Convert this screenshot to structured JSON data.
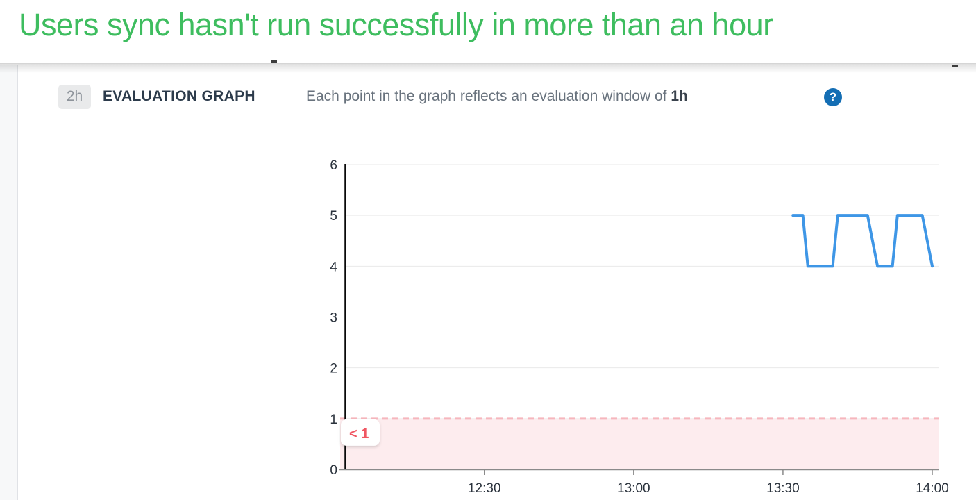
{
  "header": {
    "title": "Users sync hasn't run successfully in more than an hour",
    "title_color": "#3ebd5f"
  },
  "section": {
    "time_window_badge": "2h",
    "label": "EVALUATION GRAPH",
    "description_prefix": "Each point in the graph reflects an evaluation window of ",
    "description_window": "1h",
    "help_icon_glyph": "?",
    "help_icon_color": "#146eb4"
  },
  "chart_data": {
    "type": "line",
    "x_range": [
      "12:02",
      "14:00"
    ],
    "x_ticks": [
      "12:30",
      "13:00",
      "13:30",
      "14:00"
    ],
    "y_ticks": [
      0,
      1,
      2,
      3,
      4,
      5,
      6
    ],
    "ylim": [
      0,
      6
    ],
    "grid": true,
    "series": [
      {
        "name": "evaluation-points",
        "color": "#3e96e6",
        "points": [
          [
            "13:32",
            5
          ],
          [
            "13:34",
            5
          ],
          [
            "13:35",
            4
          ],
          [
            "13:40",
            4
          ],
          [
            "13:41",
            5
          ],
          [
            "13:47",
            5
          ],
          [
            "13:49",
            4
          ],
          [
            "13:52",
            4
          ],
          [
            "13:53",
            5
          ],
          [
            "13:58",
            5
          ],
          [
            "14:00",
            4
          ]
        ]
      }
    ],
    "threshold": {
      "label": "< 1",
      "value": 1,
      "operator": "below",
      "area_color": "#fdecee",
      "line_color": "#f6b6bd",
      "label_color": "#f05662"
    },
    "axis_color": "#0a0a0a",
    "x_axis_color": "#8a8a8a",
    "gridline_color": "#eaeaea",
    "tick_label_color": "#2b333d"
  }
}
